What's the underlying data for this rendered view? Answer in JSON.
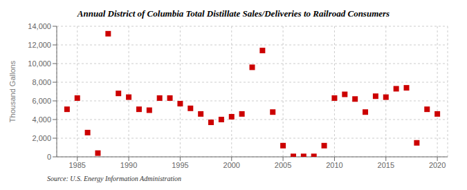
{
  "chart_data": {
    "type": "scatter",
    "title": "Annual District of Columbia Total Distillate Sales/Deliveries to Railroad Consumers",
    "ylabel": "Thousand Gallons",
    "annotation": "Source: U.S. Energy Information Administration",
    "x": [
      1984,
      1985,
      1986,
      1987,
      1988,
      1989,
      1990,
      1991,
      1992,
      1993,
      1994,
      1995,
      1996,
      1997,
      1998,
      1999,
      2000,
      2001,
      2002,
      2003,
      2004,
      2005,
      2006,
      2007,
      2008,
      2009,
      2010,
      2011,
      2012,
      2013,
      2014,
      2015,
      2016,
      2017,
      2018,
      2019,
      2020
    ],
    "values": [
      5100,
      6300,
      2600,
      400,
      13200,
      6800,
      6400,
      5100,
      5000,
      6300,
      6300,
      5700,
      5200,
      4600,
      3700,
      4000,
      4300,
      4600,
      9600,
      11400,
      4800,
      1200,
      50,
      50,
      50,
      1200,
      6300,
      6700,
      6200,
      4800,
      6500,
      6400,
      7300,
      7400,
      1500,
      5100,
      4600
    ],
    "color": "#cc0000",
    "marker": "square",
    "grid": true,
    "xlim": [
      1983,
      2021
    ],
    "ylim": [
      0,
      14000
    ],
    "xticks": [
      1985,
      1990,
      1995,
      2000,
      2005,
      2010,
      2015,
      2020
    ],
    "yticks": [
      0,
      {
        "value": 2000,
        "label": "2,000"
      },
      {
        "value": 4000,
        "label": "4,000"
      },
      {
        "value": 6000,
        "label": "6,000"
      },
      {
        "value": 8000,
        "label": "8,000"
      },
      {
        "value": 10000,
        "label": "10,000"
      },
      {
        "value": 12000,
        "label": "12,000"
      },
      {
        "value": 14000,
        "label": "14,000"
      }
    ]
  }
}
